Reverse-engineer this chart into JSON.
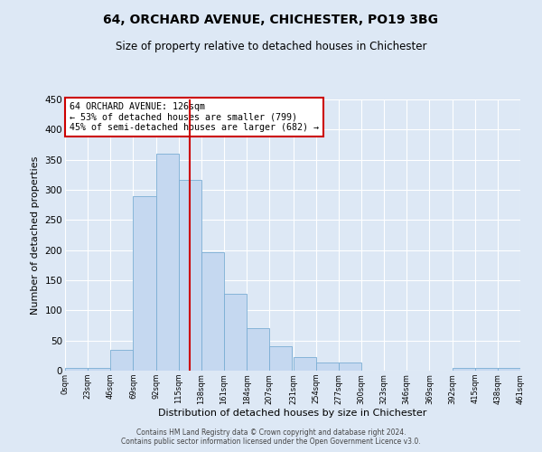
{
  "title": "64, ORCHARD AVENUE, CHICHESTER, PO19 3BG",
  "subtitle": "Size of property relative to detached houses in Chichester",
  "xlabel": "Distribution of detached houses by size in Chichester",
  "ylabel": "Number of detached properties",
  "bin_edges": [
    0,
    23,
    46,
    69,
    92,
    115,
    138,
    161,
    184,
    207,
    231,
    254,
    277,
    300,
    323,
    346,
    369,
    392,
    415,
    438,
    461
  ],
  "bin_labels": [
    "0sqm",
    "23sqm",
    "46sqm",
    "69sqm",
    "92sqm",
    "115sqm",
    "138sqm",
    "161sqm",
    "184sqm",
    "207sqm",
    "231sqm",
    "254sqm",
    "277sqm",
    "300sqm",
    "323sqm",
    "346sqm",
    "369sqm",
    "392sqm",
    "415sqm",
    "438sqm",
    "461sqm"
  ],
  "counts": [
    5,
    5,
    35,
    290,
    360,
    317,
    197,
    128,
    71,
    40,
    22,
    14,
    13,
    0,
    0,
    0,
    0,
    5,
    5,
    5
  ],
  "bar_color": "#c5d8f0",
  "bar_edge_color": "#7aadd4",
  "vline_x": 126,
  "vline_color": "#cc0000",
  "annotation_text": "64 ORCHARD AVENUE: 126sqm\n← 53% of detached houses are smaller (799)\n45% of semi-detached houses are larger (682) →",
  "annotation_box_color": "#ffffff",
  "annotation_box_edge_color": "#cc0000",
  "ylim": [
    0,
    450
  ],
  "yticks": [
    0,
    50,
    100,
    150,
    200,
    250,
    300,
    350,
    400,
    450
  ],
  "footer1": "Contains HM Land Registry data © Crown copyright and database right 2024.",
  "footer2": "Contains public sector information licensed under the Open Government Licence v3.0.",
  "bg_color": "#dde8f5",
  "plot_bg_color": "#dde8f5"
}
